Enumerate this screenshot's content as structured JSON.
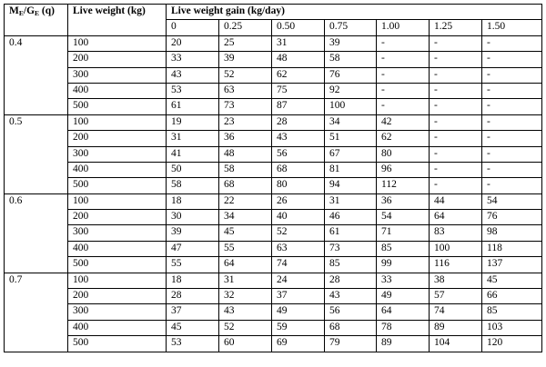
{
  "table": {
    "header": {
      "q_label_main1": "M",
      "q_label_sub1": "E",
      "q_label_main2": "/G",
      "q_label_sub2": "E",
      "q_label_tail": " (q)",
      "live_weight": "Live weight (kg)",
      "gain": "Live weight gain (kg/day)"
    },
    "gain_levels": [
      "0",
      "0.25",
      "0.50",
      "0.75",
      "1.00",
      "1.25",
      "1.50"
    ],
    "groups": [
      {
        "q": "0.4",
        "rows": [
          {
            "weight": "100",
            "values": [
              "20",
              "25",
              "31",
              "39",
              "-",
              "-",
              "-"
            ]
          },
          {
            "weight": "200",
            "values": [
              "33",
              "39",
              "48",
              "58",
              "-",
              "-",
              "-"
            ]
          },
          {
            "weight": "300",
            "values": [
              "43",
              "52",
              "62",
              "76",
              "-",
              "-",
              "-"
            ]
          },
          {
            "weight": "400",
            "values": [
              "53",
              "63",
              "75",
              "92",
              "-",
              "-",
              "-"
            ]
          },
          {
            "weight": "500",
            "values": [
              "61",
              "73",
              "87",
              "100",
              "-",
              "-",
              "-"
            ]
          }
        ]
      },
      {
        "q": "0.5",
        "rows": [
          {
            "weight": "100",
            "values": [
              "19",
              "23",
              "28",
              "34",
              "42",
              "-",
              "-"
            ]
          },
          {
            "weight": "200",
            "values": [
              "31",
              "36",
              "43",
              "51",
              "62",
              "-",
              "-"
            ]
          },
          {
            "weight": "300",
            "values": [
              "41",
              "48",
              "56",
              "67",
              "80",
              "-",
              "-"
            ]
          },
          {
            "weight": "400",
            "values": [
              "50",
              "58",
              "68",
              "81",
              "96",
              "-",
              "-"
            ]
          },
          {
            "weight": "500",
            "values": [
              "58",
              "68",
              "80",
              "94",
              "112",
              "-",
              "-"
            ]
          }
        ]
      },
      {
        "q": "0.6",
        "rows": [
          {
            "weight": "100",
            "values": [
              "18",
              "22",
              "26",
              "31",
              "36",
              "44",
              "54"
            ]
          },
          {
            "weight": "200",
            "values": [
              "30",
              "34",
              "40",
              "46",
              "54",
              "64",
              "76"
            ]
          },
          {
            "weight": "300",
            "values": [
              "39",
              "45",
              "52",
              "61",
              "71",
              "83",
              "98"
            ]
          },
          {
            "weight": "400",
            "values": [
              "47",
              "55",
              "63",
              "73",
              "85",
              "100",
              "118"
            ]
          },
          {
            "weight": "500",
            "values": [
              "55",
              "64",
              "74",
              "85",
              "99",
              "116",
              "137"
            ]
          }
        ]
      },
      {
        "q": "0.7",
        "rows": [
          {
            "weight": "100",
            "values": [
              "18",
              "31",
              "24",
              "28",
              "33",
              "38",
              "45"
            ]
          },
          {
            "weight": "200",
            "values": [
              "28",
              "32",
              "37",
              "43",
              "49",
              "57",
              "66"
            ]
          },
          {
            "weight": "300",
            "values": [
              "37",
              "43",
              "49",
              "56",
              "64",
              "74",
              "85"
            ]
          },
          {
            "weight": "400",
            "values": [
              "45",
              "52",
              "59",
              "68",
              "78",
              "89",
              "103"
            ]
          },
          {
            "weight": "500",
            "values": [
              "53",
              "60",
              "69",
              "79",
              "89",
              "104",
              "120"
            ]
          }
        ]
      }
    ]
  }
}
